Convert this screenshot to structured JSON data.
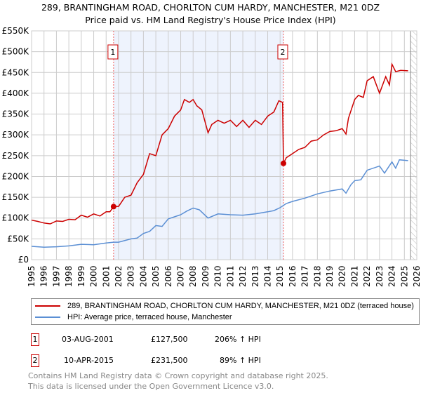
{
  "title": "289, BRANTINGHAM ROAD, CHORLTON CUM HARDY, MANCHESTER, M21 0DZ",
  "subtitle": "Price paid vs. HM Land Registry's House Price Index (HPI)",
  "chart_data": {
    "type": "line",
    "xlim": [
      1995,
      2026
    ],
    "ylim": [
      0,
      550000
    ],
    "yticks": [
      0,
      50000,
      100000,
      150000,
      200000,
      250000,
      300000,
      350000,
      400000,
      450000,
      500000,
      550000
    ],
    "ytick_labels": [
      "£0",
      "£50K",
      "£100K",
      "£150K",
      "£200K",
      "£250K",
      "£300K",
      "£350K",
      "£400K",
      "£450K",
      "£500K",
      "£550K"
    ],
    "xticks": [
      1995,
      1996,
      1997,
      1998,
      1999,
      2000,
      2001,
      2002,
      2003,
      2004,
      2005,
      2006,
      2007,
      2008,
      2009,
      2010,
      2011,
      2012,
      2013,
      2014,
      2015,
      2016,
      2017,
      2018,
      2019,
      2020,
      2021,
      2022,
      2023,
      2024,
      2025,
      2026
    ],
    "grid": true,
    "shaded_range": [
      2001.6,
      2015.27
    ],
    "forecast_from": 2025.5,
    "series": [
      {
        "name": "289, BRANTINGHAM ROAD, CHORLTON CUM HARDY, MANCHESTER, M21 0DZ (terraced house)",
        "color": "#cc0000",
        "x": [
          1995,
          1995.5,
          1996,
          1996.5,
          1997,
          1997.5,
          1998,
          1998.5,
          1999,
          1999.5,
          2000,
          2000.5,
          2001,
          2001.3,
          2001.6,
          2002,
          2002.5,
          2003,
          2003.5,
          2004,
          2004.5,
          2005,
          2005.5,
          2006,
          2006.5,
          2007,
          2007.3,
          2007.7,
          2008,
          2008.3,
          2008.7,
          2009.2,
          2009.5,
          2010,
          2010.5,
          2011,
          2011.5,
          2012,
          2012.5,
          2013,
          2013.5,
          2014,
          2014.5,
          2014.9,
          2015.2,
          2015.27,
          2015.5,
          2016,
          2016.5,
          2017,
          2017.5,
          2018,
          2018.5,
          2019,
          2019.5,
          2020,
          2020.3,
          2020.5,
          2021,
          2021.3,
          2021.7,
          2022,
          2022.5,
          2023,
          2023.5,
          2023.8,
          2024,
          2024.3,
          2024.7,
          2025.3
        ],
        "y": [
          95000,
          92000,
          88000,
          86000,
          93000,
          92000,
          97000,
          96000,
          107000,
          102000,
          110000,
          105000,
          115000,
          115000,
          127500,
          128000,
          150000,
          155000,
          185000,
          205000,
          255000,
          250000,
          300000,
          315000,
          345000,
          360000,
          385000,
          378000,
          385000,
          370000,
          360000,
          305000,
          325000,
          335000,
          328000,
          335000,
          320000,
          335000,
          318000,
          335000,
          325000,
          345000,
          355000,
          382000,
          378000,
          231500,
          245000,
          255000,
          265000,
          270000,
          285000,
          288000,
          300000,
          308000,
          310000,
          315000,
          302000,
          340000,
          385000,
          395000,
          390000,
          430000,
          440000,
          400000,
          440000,
          420000,
          470000,
          452000,
          455000,
          454000
        ]
      },
      {
        "name": "HPI: Average price, terraced house, Manchester",
        "color": "#5b8fd4",
        "x": [
          1995,
          1996,
          1997,
          1998,
          1999,
          2000,
          2001,
          2001.6,
          2002,
          2003,
          2003.5,
          2004,
          2004.5,
          2005,
          2005.5,
          2006,
          2007,
          2007.5,
          2008,
          2008.5,
          2009.2,
          2010,
          2011,
          2012,
          2013,
          2014,
          2014.5,
          2015,
          2015.5,
          2016,
          2017,
          2018,
          2019,
          2020,
          2020.3,
          2020.7,
          2021,
          2021.5,
          2022,
          2023,
          2023.4,
          2024,
          2024.3,
          2024.6,
          2025.3
        ],
        "y": [
          32000,
          30000,
          31000,
          33000,
          37000,
          36000,
          40000,
          42000,
          42000,
          50000,
          52000,
          63000,
          68000,
          82000,
          80000,
          98000,
          108000,
          117000,
          124000,
          120000,
          100000,
          110000,
          108000,
          107000,
          110000,
          115000,
          118000,
          125000,
          135000,
          140000,
          148000,
          158000,
          165000,
          170000,
          160000,
          180000,
          190000,
          192000,
          215000,
          225000,
          208000,
          235000,
          220000,
          240000,
          238000
        ]
      }
    ],
    "annotations": [
      {
        "label": "1",
        "x": 2001.6,
        "y": 127500
      },
      {
        "label": "2",
        "x": 2015.27,
        "y": 231500
      }
    ]
  },
  "legend": {
    "red": "289, BRANTINGHAM ROAD, CHORLTON CUM HARDY, MANCHESTER, M21 0DZ (terraced house)",
    "blue": "HPI: Average price, terraced house, Manchester"
  },
  "transactions": [
    {
      "num": "1",
      "date": "03-AUG-2001",
      "price": "£127,500",
      "hpi": "206% ↑ HPI"
    },
    {
      "num": "2",
      "date": "10-APR-2015",
      "price": "£231,500",
      "hpi": "89% ↑ HPI"
    }
  ],
  "footer": [
    "Contains HM Land Registry data © Crown copyright and database right 2025.",
    "This data is licensed under the Open Government Licence v3.0."
  ]
}
